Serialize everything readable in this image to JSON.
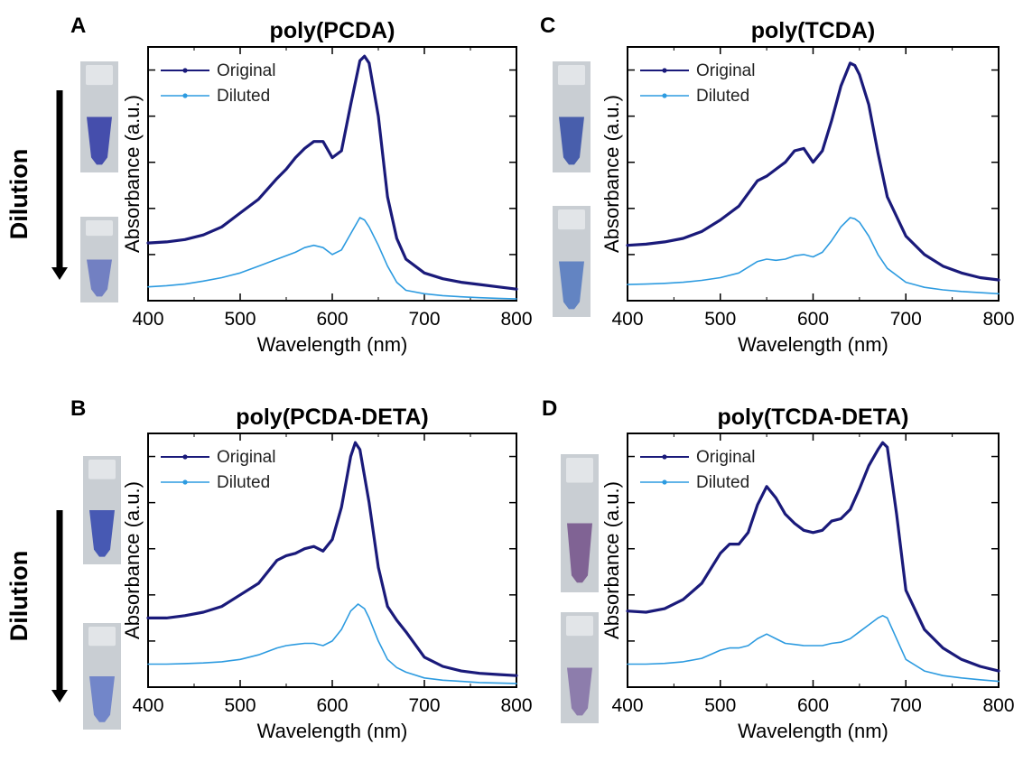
{
  "colors": {
    "original": "#1a1a7a",
    "diluted": "#2d9be0",
    "axis": "#000000"
  },
  "side_labels": {
    "dilution": "Dilution"
  },
  "chart_data": [
    {
      "id": "A",
      "panel_letter": "A",
      "type": "line",
      "title": "poly(PCDA)",
      "xlabel": "Wavelength (nm)",
      "ylabel": "Absorbance (a.u.)",
      "xlim": [
        400,
        800
      ],
      "ylim": [
        0,
        1.1
      ],
      "xticks": [
        400,
        500,
        600,
        700,
        800
      ],
      "yticks": [
        0.2,
        0.4,
        0.6,
        0.8,
        1.0
      ],
      "yticklabels": false,
      "legend": "top-left",
      "vial_colors": [
        "#3a43a8",
        "#6a7ac0"
      ],
      "dilution_arrow": true,
      "series": [
        {
          "name": "Original",
          "color_key": "original",
          "x": [
            400,
            420,
            440,
            460,
            480,
            500,
            520,
            540,
            550,
            560,
            570,
            580,
            590,
            600,
            610,
            620,
            630,
            635,
            640,
            650,
            660,
            670,
            680,
            700,
            720,
            740,
            760,
            780,
            800
          ],
          "y": [
            0.25,
            0.255,
            0.265,
            0.285,
            0.32,
            0.38,
            0.44,
            0.53,
            0.57,
            0.62,
            0.66,
            0.69,
            0.69,
            0.62,
            0.65,
            0.85,
            1.04,
            1.06,
            1.03,
            0.8,
            0.45,
            0.27,
            0.18,
            0.12,
            0.095,
            0.08,
            0.07,
            0.06,
            0.05
          ]
        },
        {
          "name": "Diluted",
          "color_key": "diluted",
          "x": [
            400,
            420,
            440,
            460,
            480,
            500,
            520,
            540,
            560,
            570,
            580,
            590,
            600,
            610,
            620,
            630,
            635,
            640,
            650,
            660,
            670,
            680,
            700,
            720,
            740,
            760,
            780,
            800
          ],
          "y": [
            0.06,
            0.065,
            0.072,
            0.085,
            0.1,
            0.12,
            0.15,
            0.18,
            0.21,
            0.23,
            0.24,
            0.23,
            0.2,
            0.22,
            0.29,
            0.36,
            0.35,
            0.32,
            0.24,
            0.15,
            0.08,
            0.045,
            0.03,
            0.022,
            0.017,
            0.013,
            0.01,
            0.008
          ]
        }
      ]
    },
    {
      "id": "B",
      "panel_letter": "B",
      "type": "line",
      "title": "poly(PCDA-DETA)",
      "xlabel": "Wavelength (nm)",
      "ylabel": "Absorbance (a.u.)",
      "xlim": [
        400,
        800
      ],
      "ylim": [
        0,
        1.1
      ],
      "xticks": [
        400,
        500,
        600,
        700,
        800
      ],
      "yticks": [
        0.2,
        0.4,
        0.6,
        0.8,
        1.0
      ],
      "yticklabels": false,
      "legend": "top-left",
      "vial_colors": [
        "#3c4fb0",
        "#6a80c8"
      ],
      "dilution_arrow": true,
      "series": [
        {
          "name": "Original",
          "color_key": "original",
          "x": [
            400,
            420,
            440,
            460,
            480,
            500,
            520,
            540,
            550,
            560,
            570,
            580,
            590,
            600,
            610,
            620,
            625,
            630,
            640,
            650,
            660,
            670,
            680,
            700,
            720,
            740,
            760,
            780,
            800
          ],
          "y": [
            0.3,
            0.3,
            0.31,
            0.325,
            0.35,
            0.4,
            0.45,
            0.55,
            0.57,
            0.58,
            0.6,
            0.61,
            0.59,
            0.64,
            0.78,
            1.0,
            1.06,
            1.03,
            0.8,
            0.52,
            0.35,
            0.29,
            0.24,
            0.13,
            0.09,
            0.07,
            0.06,
            0.055,
            0.05
          ]
        },
        {
          "name": "Diluted",
          "color_key": "diluted",
          "x": [
            400,
            420,
            440,
            460,
            480,
            500,
            520,
            540,
            550,
            560,
            570,
            580,
            590,
            600,
            610,
            620,
            628,
            635,
            640,
            650,
            660,
            670,
            680,
            700,
            720,
            740,
            760,
            780,
            800
          ],
          "y": [
            0.1,
            0.1,
            0.102,
            0.105,
            0.11,
            0.12,
            0.14,
            0.17,
            0.18,
            0.185,
            0.19,
            0.19,
            0.18,
            0.2,
            0.25,
            0.33,
            0.36,
            0.34,
            0.3,
            0.2,
            0.12,
            0.085,
            0.065,
            0.04,
            0.03,
            0.025,
            0.02,
            0.018,
            0.016
          ]
        }
      ]
    },
    {
      "id": "C",
      "panel_letter": "C",
      "type": "line",
      "title": "poly(TCDA)",
      "xlabel": "Wavelength (nm)",
      "ylabel": "Absorbance (a.u.)",
      "xlim": [
        400,
        800
      ],
      "ylim": [
        0,
        1.1
      ],
      "xticks": [
        400,
        500,
        600,
        700,
        800
      ],
      "yticks": [
        0.2,
        0.4,
        0.6,
        0.8,
        1.0
      ],
      "yticklabels": false,
      "legend": "top-left",
      "vial_colors": [
        "#3d55a8",
        "#5a7ec0"
      ],
      "dilution_arrow": false,
      "series": [
        {
          "name": "Original",
          "color_key": "original",
          "x": [
            400,
            420,
            440,
            460,
            480,
            500,
            520,
            540,
            550,
            560,
            570,
            580,
            590,
            600,
            610,
            620,
            630,
            640,
            645,
            650,
            660,
            670,
            680,
            700,
            720,
            740,
            760,
            780,
            800
          ],
          "y": [
            0.24,
            0.245,
            0.255,
            0.27,
            0.3,
            0.35,
            0.41,
            0.52,
            0.54,
            0.57,
            0.6,
            0.65,
            0.66,
            0.6,
            0.65,
            0.78,
            0.93,
            1.03,
            1.02,
            0.98,
            0.85,
            0.64,
            0.45,
            0.28,
            0.2,
            0.15,
            0.12,
            0.1,
            0.09
          ]
        },
        {
          "name": "Diluted",
          "color_key": "diluted",
          "x": [
            400,
            420,
            440,
            460,
            480,
            500,
            520,
            540,
            550,
            560,
            570,
            580,
            590,
            600,
            610,
            620,
            630,
            640,
            645,
            650,
            660,
            670,
            680,
            700,
            720,
            740,
            760,
            780,
            800
          ],
          "y": [
            0.07,
            0.072,
            0.075,
            0.08,
            0.088,
            0.1,
            0.12,
            0.17,
            0.18,
            0.175,
            0.18,
            0.195,
            0.2,
            0.19,
            0.21,
            0.26,
            0.32,
            0.36,
            0.355,
            0.34,
            0.28,
            0.2,
            0.14,
            0.08,
            0.058,
            0.047,
            0.04,
            0.035,
            0.03
          ]
        }
      ]
    },
    {
      "id": "D",
      "panel_letter": "D",
      "type": "line",
      "title": "poly(TCDA-DETA)",
      "xlabel": "Wavelength (nm)",
      "ylabel": "Absorbance (a.u.)",
      "xlim": [
        400,
        800
      ],
      "ylim": [
        0,
        1.1
      ],
      "xticks": [
        400,
        500,
        600,
        700,
        800
      ],
      "yticks": [
        0.2,
        0.4,
        0.6,
        0.8,
        1.0
      ],
      "yticklabels": false,
      "legend": "top-left",
      "vial_colors": [
        "#7a5a8e",
        "#8876a8"
      ],
      "dilution_arrow": false,
      "series": [
        {
          "name": "Original",
          "color_key": "original",
          "x": [
            400,
            420,
            440,
            460,
            480,
            500,
            510,
            520,
            530,
            540,
            550,
            560,
            570,
            580,
            590,
            600,
            610,
            620,
            630,
            640,
            650,
            660,
            670,
            675,
            680,
            690,
            700,
            720,
            740,
            760,
            780,
            800
          ],
          "y": [
            0.33,
            0.325,
            0.34,
            0.38,
            0.45,
            0.58,
            0.62,
            0.62,
            0.67,
            0.79,
            0.87,
            0.82,
            0.75,
            0.71,
            0.68,
            0.67,
            0.68,
            0.72,
            0.73,
            0.77,
            0.86,
            0.96,
            1.03,
            1.06,
            1.04,
            0.75,
            0.42,
            0.25,
            0.17,
            0.12,
            0.09,
            0.07
          ]
        },
        {
          "name": "Diluted",
          "color_key": "diluted",
          "x": [
            400,
            420,
            440,
            460,
            480,
            500,
            510,
            520,
            530,
            540,
            550,
            560,
            570,
            580,
            590,
            600,
            610,
            620,
            630,
            640,
            650,
            660,
            670,
            675,
            680,
            690,
            700,
            720,
            740,
            760,
            780,
            800
          ],
          "y": [
            0.1,
            0.1,
            0.103,
            0.11,
            0.125,
            0.16,
            0.17,
            0.17,
            0.18,
            0.21,
            0.23,
            0.21,
            0.19,
            0.185,
            0.18,
            0.18,
            0.18,
            0.19,
            0.195,
            0.21,
            0.24,
            0.27,
            0.3,
            0.31,
            0.3,
            0.21,
            0.12,
            0.07,
            0.05,
            0.04,
            0.032,
            0.025
          ]
        }
      ]
    }
  ]
}
